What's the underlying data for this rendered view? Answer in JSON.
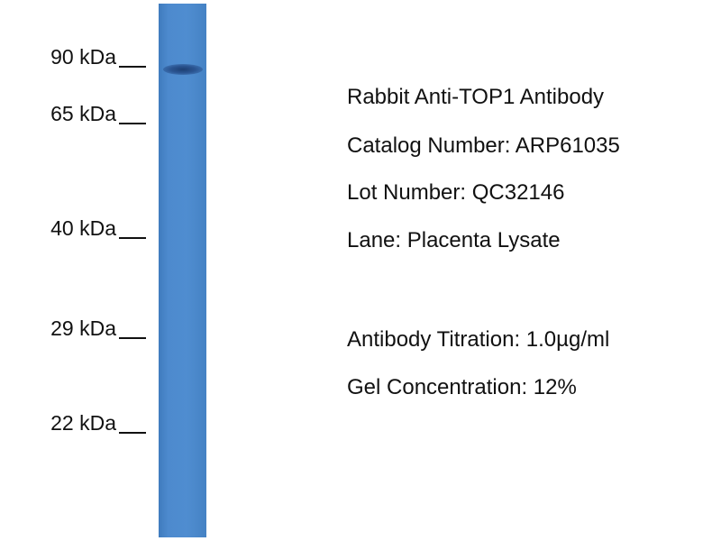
{
  "markers": [
    "90 kDa",
    "65 kDa",
    "40 kDa",
    "29 kDa",
    "22 kDa"
  ],
  "lane_color": "#4d8ace",
  "band_color": "#1d3f73",
  "info": {
    "antibody": "Rabbit Anti-TOP1 Antibody",
    "catalog": "Catalog Number: ARP61035",
    "lot": "Lot Number: QC32146",
    "lane": "Lane: Placenta Lysate",
    "titration": "Antibody Titration: 1.0µg/ml",
    "gel": "Gel Concentration: 12%"
  }
}
